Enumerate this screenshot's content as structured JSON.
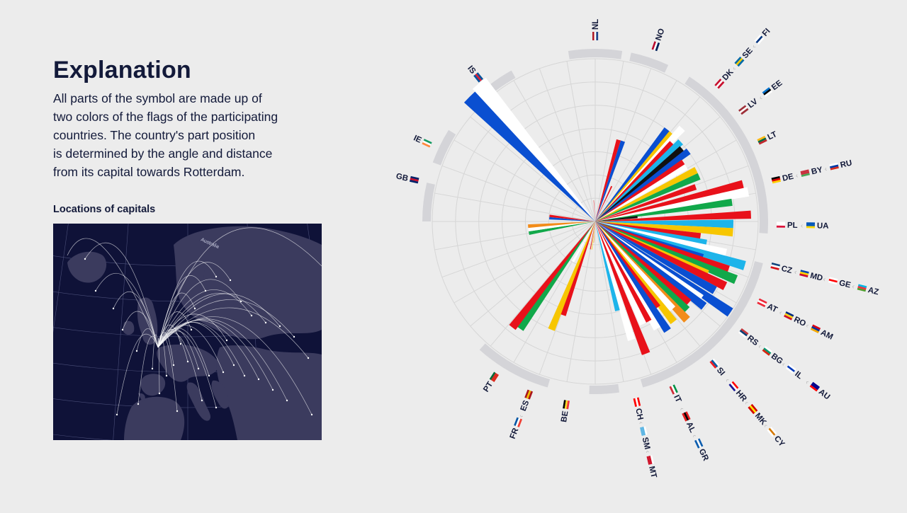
{
  "explanation": {
    "title": "Explanation",
    "lines": [
      "All parts of the symbol are made up of",
      "two colors of the flags of the participating",
      "countries. The country's part position",
      "is determined by the angle and distance",
      "from its capital towards Rotterdam."
    ]
  },
  "map": {
    "title": "Locations of capitals",
    "route_label": "Australia",
    "colors": {
      "background": "#0f1238",
      "land": "#3b3b5e",
      "routes": "#ffffff"
    }
  },
  "flag_colors": {
    "red": "#e8111a",
    "blue": "#0a4fd1",
    "white": "#ffffff",
    "yellow": "#f7c600",
    "green": "#11a84a",
    "lightblue": "#1db4ea",
    "black": "#111111",
    "orange": "#f28c1a"
  },
  "chart_data": {
    "type": "polar-area",
    "center": "Rotterdam",
    "rings": 7,
    "country_labels": [
      {
        "codes": [
          "NL"
        ],
        "angle": 0
      },
      {
        "codes": [
          "NO"
        ],
        "angle": 19
      },
      {
        "codes": [
          "DK",
          "SE",
          "FI"
        ],
        "angle": 42
      },
      {
        "codes": [
          "LV",
          "EE"
        ],
        "angle": 53
      },
      {
        "codes": [
          "LT"
        ],
        "angle": 64
      },
      {
        "codes": [
          "DE",
          "BY",
          "RU"
        ],
        "angle": 77
      },
      {
        "codes": [
          "PL",
          "UA"
        ],
        "angle": 91
      },
      {
        "codes": [
          "CZ",
          "MD",
          "GE",
          "AZ"
        ],
        "angle": 104
      },
      {
        "codes": [
          "AT",
          "RO",
          "AM"
        ],
        "angle": 116
      },
      {
        "codes": [
          "RS",
          "BG",
          "IL",
          "AU"
        ],
        "angle": 127
      },
      {
        "codes": [
          "SI",
          "HR",
          "MK",
          "CY"
        ],
        "angle": 140
      },
      {
        "codes": [
          "IT",
          "AL",
          "GR"
        ],
        "angle": 155
      },
      {
        "codes": [
          "CH",
          "SM",
          "MT"
        ],
        "angle": 167
      },
      {
        "codes": [
          "BE"
        ],
        "angle": 189
      },
      {
        "codes": [
          "ES",
          "FR"
        ],
        "angle": 201
      },
      {
        "codes": [
          "PT"
        ],
        "angle": 213
      },
      {
        "codes": [
          "GB"
        ],
        "angle": 283
      },
      {
        "codes": [
          "IE"
        ],
        "angle": 295
      },
      {
        "codes": [
          "IS"
        ],
        "angle": 321
      }
    ],
    "arcs": [
      {
        "a1": -9,
        "a2": 9
      },
      {
        "a1": 12,
        "a2": 25
      },
      {
        "a1": 33,
        "a2": 94
      },
      {
        "a1": 104,
        "a2": 164
      },
      {
        "a1": 172,
        "a2": 182
      },
      {
        "a1": 196,
        "a2": 222
      },
      {
        "a1": 270,
        "a2": 283
      },
      {
        "a1": 290,
        "a2": 302
      },
      {
        "a1": 322,
        "a2": 331
      }
    ],
    "wedges": [
      {
        "a": 25,
        "w": 2.0,
        "r": 55,
        "c": "red"
      },
      {
        "a": 16,
        "w": 3.0,
        "r": 120,
        "c": "red"
      },
      {
        "a": 19,
        "w": 3.0,
        "r": 120,
        "c": "blue"
      },
      {
        "a": 38,
        "w": 3.4,
        "r": 165,
        "c": "blue"
      },
      {
        "a": 41,
        "w": 3.4,
        "r": 165,
        "c": "yellow"
      },
      {
        "a": 43,
        "w": 3.4,
        "r": 180,
        "c": "white"
      },
      {
        "a": 44.5,
        "w": 3.4,
        "r": 155,
        "c": "red"
      },
      {
        "a": 47,
        "w": 3.4,
        "r": 165,
        "c": "lightblue"
      },
      {
        "a": 50,
        "w": 3.4,
        "r": 160,
        "c": "black"
      },
      {
        "a": 53,
        "w": 3.4,
        "r": 165,
        "c": "blue"
      },
      {
        "a": 56,
        "w": 3.2,
        "r": 150,
        "c": "red"
      },
      {
        "a": 59,
        "w": 3.2,
        "r": 150,
        "c": "white"
      },
      {
        "a": 63,
        "w": 3.5,
        "r": 160,
        "c": "yellow"
      },
      {
        "a": 66.5,
        "w": 3.5,
        "r": 160,
        "c": "green"
      },
      {
        "a": 71,
        "w": 3.2,
        "r": 150,
        "c": "red"
      },
      {
        "a": 76,
        "w": 3.5,
        "r": 215,
        "c": "red"
      },
      {
        "a": 79,
        "w": 3.5,
        "r": 220,
        "c": "white"
      },
      {
        "a": 82,
        "w": 3.0,
        "r": 195,
        "c": "green"
      },
      {
        "a": 84,
        "w": 3.0,
        "r": 60,
        "c": "black"
      },
      {
        "a": 87.5,
        "w": 3.0,
        "r": 220,
        "c": "red"
      },
      {
        "a": 91,
        "w": 3.5,
        "r": 195,
        "c": "lightblue"
      },
      {
        "a": 94.5,
        "w": 3.5,
        "r": 195,
        "c": "yellow"
      },
      {
        "a": 98,
        "w": 3.5,
        "r": 150,
        "c": "red"
      },
      {
        "a": 101,
        "w": 3.5,
        "r": 160,
        "c": "lightblue"
      },
      {
        "a": 103.5,
        "w": 3.5,
        "r": 190,
        "c": "white"
      },
      {
        "a": 106.5,
        "w": 3.5,
        "r": 220,
        "c": "lightblue"
      },
      {
        "a": 108.5,
        "w": 3.5,
        "r": 160,
        "c": "blue"
      },
      {
        "a": 110,
        "w": 3.5,
        "r": 200,
        "c": "red"
      },
      {
        "a": 112.5,
        "w": 3.5,
        "r": 215,
        "c": "green"
      },
      {
        "a": 115,
        "w": 3.5,
        "r": 175,
        "c": "yellow"
      },
      {
        "a": 116.5,
        "w": 3.5,
        "r": 205,
        "c": "red"
      },
      {
        "a": 120,
        "w": 3.5,
        "r": 195,
        "c": "blue"
      },
      {
        "a": 124,
        "w": 3.5,
        "r": 230,
        "c": "blue"
      },
      {
        "a": 126,
        "w": 3.5,
        "r": 185,
        "c": "white"
      },
      {
        "a": 128,
        "w": 3.5,
        "r": 195,
        "c": "blue"
      },
      {
        "a": 131,
        "w": 3.5,
        "r": 175,
        "c": "red"
      },
      {
        "a": 134,
        "w": 3.5,
        "r": 180,
        "c": "green"
      },
      {
        "a": 137,
        "w": 3.5,
        "r": 190,
        "c": "orange"
      },
      {
        "a": 138.5,
        "w": 3.5,
        "r": 165,
        "c": "white"
      },
      {
        "a": 142,
        "w": 3.5,
        "r": 180,
        "c": "yellow"
      },
      {
        "a": 144,
        "w": 3.5,
        "r": 150,
        "c": "red"
      },
      {
        "a": 146.5,
        "w": 3.5,
        "r": 185,
        "c": "blue"
      },
      {
        "a": 150,
        "w": 3.5,
        "r": 175,
        "c": "white"
      },
      {
        "a": 152,
        "w": 3.5,
        "r": 160,
        "c": "red"
      },
      {
        "a": 155,
        "w": 3.5,
        "r": 160,
        "c": "white"
      },
      {
        "a": 159,
        "w": 3.5,
        "r": 200,
        "c": "red"
      },
      {
        "a": 163,
        "w": 3.5,
        "r": 175,
        "c": "white"
      },
      {
        "a": 166,
        "w": 3.0,
        "r": 130,
        "c": "lightblue"
      },
      {
        "a": 184,
        "w": 1.2,
        "r": 30,
        "c": "orange"
      },
      {
        "a": 187,
        "w": 1.2,
        "r": 40,
        "c": "yellow"
      },
      {
        "a": 190,
        "w": 1.5,
        "r": 40,
        "c": "red"
      },
      {
        "a": 199,
        "w": 3.5,
        "r": 140,
        "c": "red"
      },
      {
        "a": 202,
        "w": 3.5,
        "r": 165,
        "c": "yellow"
      },
      {
        "a": 209,
        "w": 3.0,
        "r": 65,
        "c": "white"
      },
      {
        "a": 215,
        "w": 3.5,
        "r": 185,
        "c": "green"
      },
      {
        "a": 218,
        "w": 3.5,
        "r": 190,
        "c": "red"
      },
      {
        "a": 260,
        "w": 3.0,
        "r": 95,
        "c": "green"
      },
      {
        "a": 263,
        "w": 3.0,
        "r": 95,
        "c": "white"
      },
      {
        "a": 266,
        "w": 3.0,
        "r": 95,
        "c": "orange"
      },
      {
        "a": 274,
        "w": 3.0,
        "r": 65,
        "c": "blue"
      },
      {
        "a": 277,
        "w": 3.0,
        "r": 65,
        "c": "red"
      },
      {
        "a": 315,
        "w": 5.5,
        "r": 250,
        "c": "blue"
      },
      {
        "a": 320,
        "w": 5.5,
        "r": 255,
        "c": "white"
      },
      {
        "a": 356,
        "w": 1.0,
        "r": 30,
        "c": "red"
      }
    ]
  }
}
